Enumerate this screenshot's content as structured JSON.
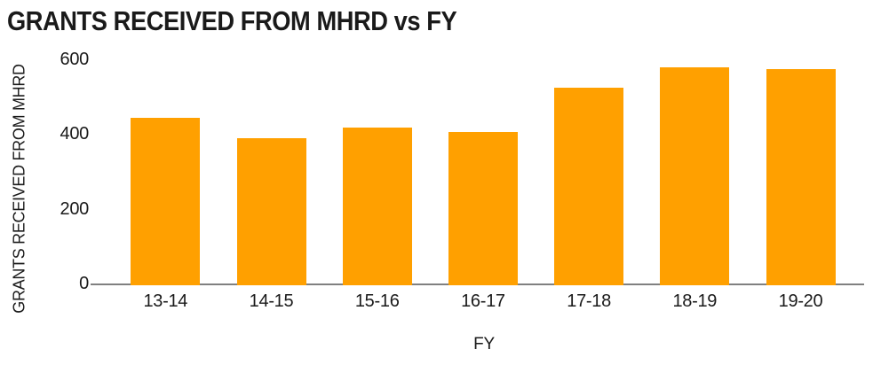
{
  "chart_data": {
    "type": "bar",
    "title": "GRANTS RECEIVED FROM MHRD vs FY",
    "xlabel": "FY",
    "ylabel": "GRANTS RECEIVED FROM MHRD",
    "categories": [
      "13-14",
      "14-15",
      "15-16",
      "16-17",
      "17-18",
      "18-19",
      "19-20"
    ],
    "values": [
      443,
      389,
      417,
      405,
      523,
      579,
      573
    ],
    "yticks": [
      0,
      200,
      400,
      600
    ],
    "ylim": [
      0,
      600
    ],
    "grid": false,
    "legend": false,
    "colors": {
      "bar": "#FFA000",
      "axis_line": "#808080",
      "text": "#1A1A1A",
      "background": "#FFFFFF"
    }
  }
}
